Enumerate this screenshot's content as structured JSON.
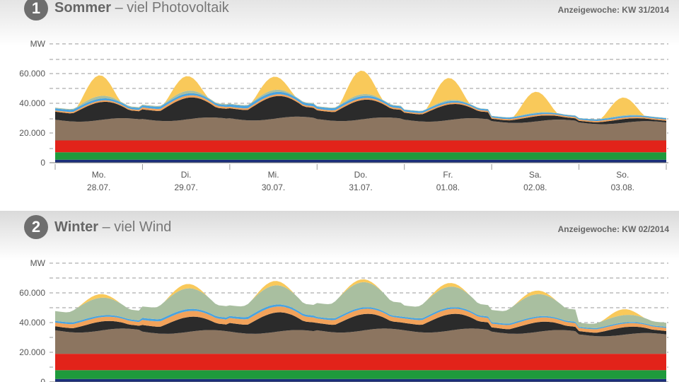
{
  "chart_data": [
    {
      "type": "area",
      "number": "1",
      "title": "Sommer",
      "subtitle": "– viel Photovoltaik",
      "week_label": "Anzeigewoche: KW 31/2014",
      "ylabel": "MW",
      "yticks": [
        "60.000",
        "40.000",
        "20.000",
        "0"
      ],
      "ylim": [
        0,
        80000
      ],
      "days": [
        {
          "name": "Mo.",
          "date": "28.07."
        },
        {
          "name": "Di.",
          "date": "29.07."
        },
        {
          "name": "Mi.",
          "date": "30.07."
        },
        {
          "name": "Do.",
          "date": "31.07."
        },
        {
          "name": "Fr.",
          "date": "01.08."
        },
        {
          "name": "Sa.",
          "date": "02.08."
        },
        {
          "name": "So.",
          "date": "03.08."
        }
      ],
      "layers_mw": [
        {
          "color": "#1a2e7a",
          "values": [
            2000
          ]
        },
        {
          "color": "#1e9a3c",
          "values": [
            5000
          ]
        },
        {
          "color": "#e2231a",
          "values": [
            8000
          ]
        },
        {
          "color": "#8c7560",
          "values": [
            15000,
            15500,
            16000,
            15500,
            15000,
            14000,
            13000
          ]
        },
        {
          "color": "#2b2b2b",
          "values": [
            12000,
            14500,
            15000,
            13000,
            10500,
            3500,
            2500
          ]
        },
        {
          "color": "#f2a25a",
          "values": [
            1000,
            1500,
            1200,
            1200,
            1000,
            1000,
            1000
          ]
        },
        {
          "color": "#4aa3df",
          "values": [
            1500,
            1500,
            1800,
            1500,
            1200,
            1000,
            1000
          ]
        },
        {
          "color": "#a9bfa0",
          "values": [
            1800,
            1800,
            1500,
            1300,
            800,
            600,
            600
          ]
        },
        {
          "color": "#f9c95a",
          "values": [
            14000,
            10000,
            9000,
            16000,
            15000,
            14000,
            12000
          ]
        }
      ]
    },
    {
      "type": "area",
      "number": "2",
      "title": "Winter",
      "subtitle": "– viel Wind",
      "week_label": "Anzeigewoche: KW 02/2014",
      "ylabel": "MW",
      "yticks": [
        "60.000",
        "40.000",
        "20.000",
        "0"
      ],
      "ylim": [
        0,
        80000
      ],
      "layers_mw": [
        {
          "color": "#1a2e7a",
          "values": [
            2000
          ]
        },
        {
          "color": "#1e9a3c",
          "values": [
            6000
          ]
        },
        {
          "color": "#e2231a",
          "values": [
            11000
          ]
        },
        {
          "color": "#8c7560",
          "values": [
            17000,
            16000,
            16000,
            17000,
            17000,
            16000,
            14000
          ]
        },
        {
          "color": "#2b2b2b",
          "values": [
            6000,
            10000,
            13000,
            11000,
            11000,
            6500,
            5000
          ]
        },
        {
          "color": "#f2a25a",
          "values": [
            3000,
            4000,
            4000,
            3500,
            3500,
            3000,
            2500
          ]
        },
        {
          "color": "#4aa3df",
          "values": [
            1200,
            1500,
            1500,
            1200,
            1200,
            1000,
            800
          ]
        },
        {
          "color": "#a9bfa0",
          "values": [
            12000,
            14000,
            13000,
            17000,
            14000,
            15000,
            5000
          ]
        },
        {
          "color": "#f9c95a",
          "values": [
            2500,
            3000,
            3000,
            2000,
            2500,
            2500,
            4000
          ]
        }
      ]
    }
  ]
}
